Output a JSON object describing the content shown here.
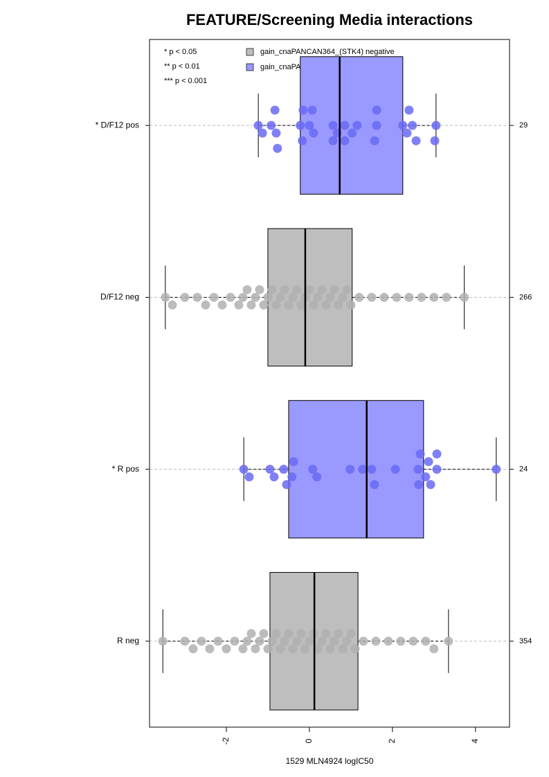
{
  "chart_data": {
    "type": "boxplot",
    "title": "FEATURE/Screening Media interactions",
    "x_label": "1529 MLN4924 logIC50",
    "xlim": [
      -3.85,
      4.82
    ],
    "xticks": [
      -2,
      0,
      2,
      4
    ],
    "significance_notes": [
      "* p < 0.05",
      "** p < 0.01",
      "*** p < 0.001"
    ],
    "legend": [
      {
        "name": "gain_cnaPANCAN364_(STK4) negative",
        "color": "#bebebe"
      },
      {
        "name": "gain_cnaPANCAN364_(STK4) positive",
        "color": "#9999ff"
      }
    ],
    "groups": [
      {
        "name": "* D/F12 pos",
        "n": 29,
        "color": "#9999ff",
        "point_color": "#6a6af5",
        "whisker_low": -1.23,
        "q1": -0.22,
        "median": 0.73,
        "q3": 2.25,
        "whisker_high": 3.05,
        "points": [
          -1.23,
          -1.13,
          -0.92,
          -0.8,
          -0.83,
          -0.77,
          -0.22,
          -0.17,
          -0.15,
          0,
          0.1,
          0.07,
          0.57,
          0.67,
          0.57,
          0.85,
          1.03,
          0.85,
          1.15,
          1.62,
          1.57,
          1.62,
          2.25,
          2.35,
          2.48,
          2.57,
          2.4,
          3.05,
          3.02
        ]
      },
      {
        "name": "D/F12 neg",
        "n": 266,
        "color": "#bebebe",
        "point_color": "#b0b0b0",
        "whisker_low": -3.47,
        "q1": -1.0,
        "median": -0.1,
        "q3": 1.03,
        "whisker_high": 3.73,
        "points": [
          -3.47,
          -3.3,
          -3.0,
          -2.7,
          -2.5,
          -2.3,
          -2.1,
          -1.9,
          -1.7,
          -1.6,
          -1.5,
          -1.4,
          -1.3,
          -1.2,
          -1.1,
          -1.0,
          -0.9,
          -0.8,
          -0.7,
          -0.6,
          -0.5,
          -0.4,
          -0.3,
          -0.2,
          -0.1,
          0,
          0.1,
          0.2,
          0.3,
          0.4,
          0.5,
          0.6,
          0.7,
          0.8,
          0.9,
          1.0,
          1.2,
          1.5,
          1.8,
          2.1,
          2.4,
          2.7,
          3.0,
          3.3,
          3.73
        ]
      },
      {
        "name": "* R pos",
        "n": 24,
        "color": "#9999ff",
        "point_color": "#6a6af5",
        "whisker_low": -1.58,
        "q1": -0.5,
        "median": 1.38,
        "q3": 2.75,
        "whisker_high": 4.5,
        "points": [
          -1.58,
          -1.45,
          -0.95,
          -0.85,
          -0.62,
          -0.55,
          -0.42,
          -0.38,
          0.08,
          0.18,
          0.98,
          1.28,
          1.5,
          1.57,
          2.07,
          2.62,
          2.63,
          2.67,
          2.8,
          2.87,
          2.92,
          3.07,
          3.07,
          4.5
        ]
      },
      {
        "name": "R neg",
        "n": 354,
        "color": "#bebebe",
        "point_color": "#b0b0b0",
        "whisker_low": -3.53,
        "q1": -0.95,
        "median": 0.12,
        "q3": 1.17,
        "whisker_high": 3.35,
        "points": [
          -3.53,
          -3.0,
          -2.8,
          -2.6,
          -2.4,
          -2.2,
          -2.0,
          -1.8,
          -1.6,
          -1.5,
          -1.4,
          -1.3,
          -1.2,
          -1.1,
          -1.0,
          -0.9,
          -0.8,
          -0.7,
          -0.6,
          -0.5,
          -0.4,
          -0.3,
          -0.2,
          -0.1,
          0,
          0.1,
          0.2,
          0.3,
          0.4,
          0.5,
          0.6,
          0.7,
          0.8,
          0.9,
          1.0,
          1.1,
          1.3,
          1.6,
          1.9,
          2.2,
          2.5,
          2.8,
          3.0,
          3.35
        ]
      }
    ]
  }
}
